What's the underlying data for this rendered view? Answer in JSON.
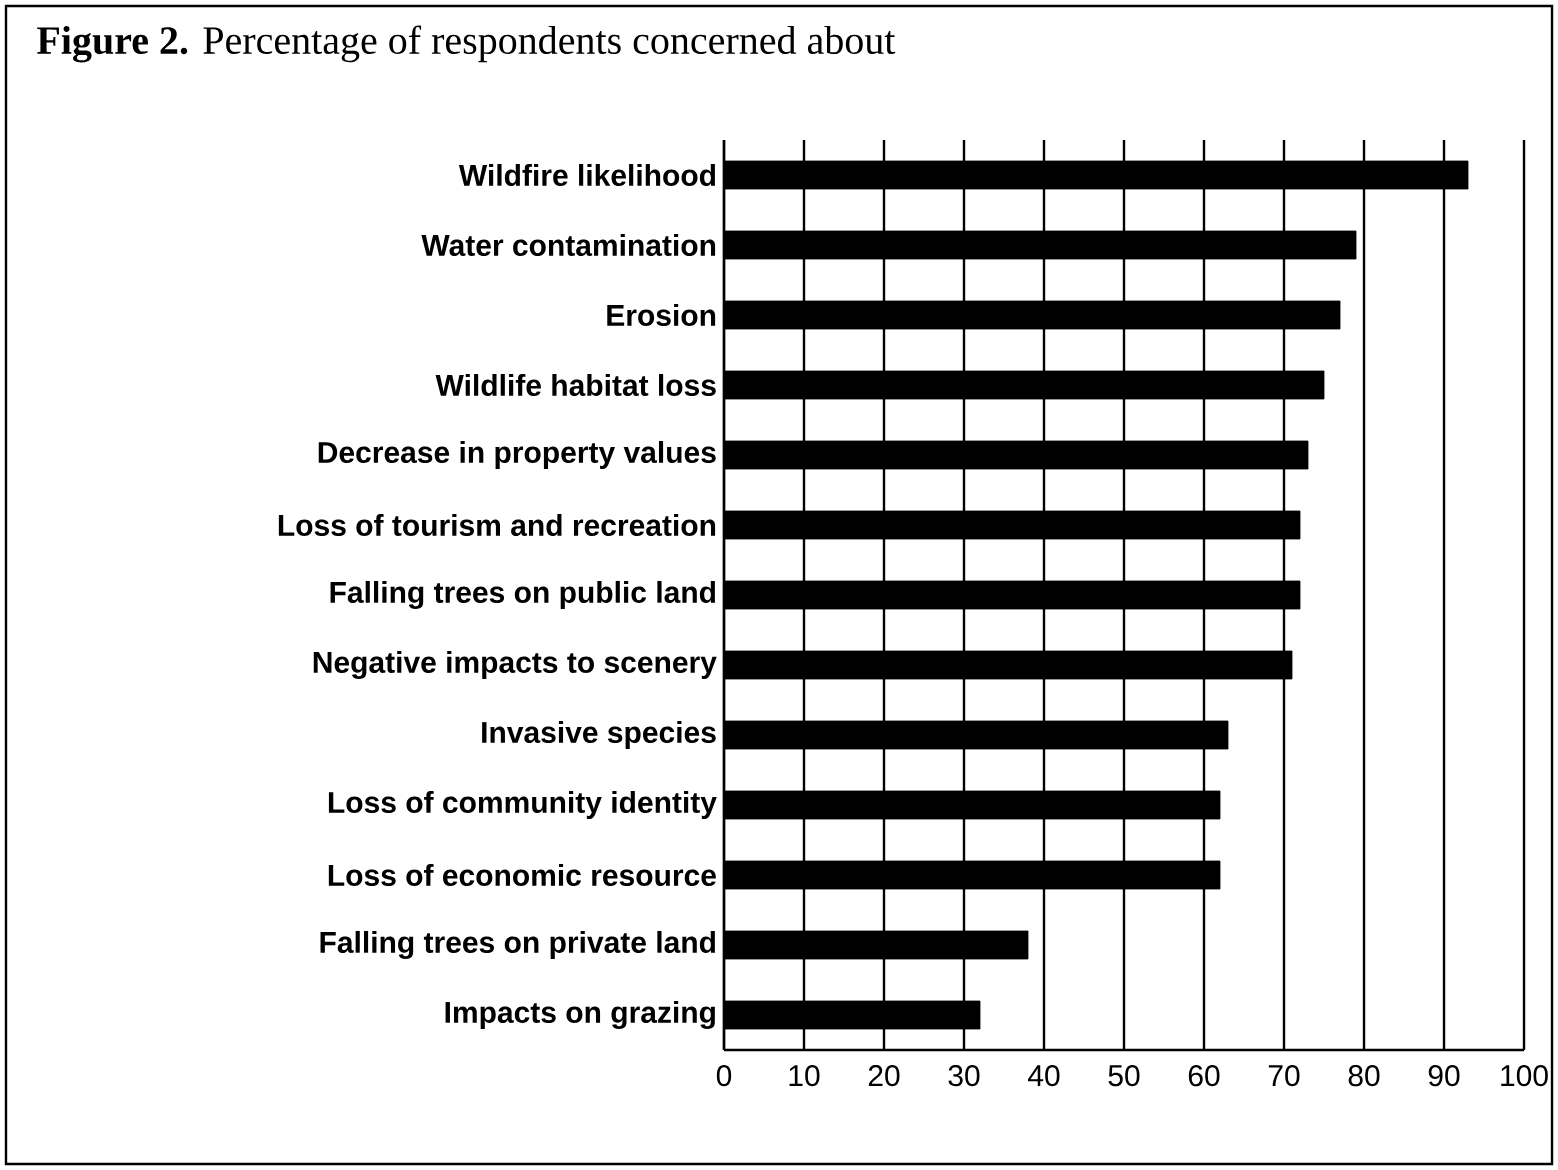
{
  "chart_data": {
    "type": "bar",
    "orientation": "horizontal",
    "title": "**Figure 2.** Percentage of respondents concerned about",
    "categories": [
      "Wildfire likelihood",
      "Water contamination",
      "Erosion",
      "Wildlife habitat loss",
      "Decrease in property values",
      "Loss of tourism and recreation",
      "Falling trees on public land",
      "Negative impacts to scenery",
      "Invasive species",
      "Loss of community identity",
      "Loss of economic resource",
      "Falling trees on private land",
      "Impacts on grazing"
    ],
    "values": [
      93,
      79,
      77,
      75,
      73,
      72,
      72,
      71,
      63,
      62,
      62,
      38,
      32
    ],
    "color": "#000000",
    "xlim": [
      0,
      100
    ],
    "xticks": [
      0,
      10,
      20,
      30,
      40,
      50,
      60,
      70,
      80,
      90,
      100
    ],
    "grid": "x"
  }
}
